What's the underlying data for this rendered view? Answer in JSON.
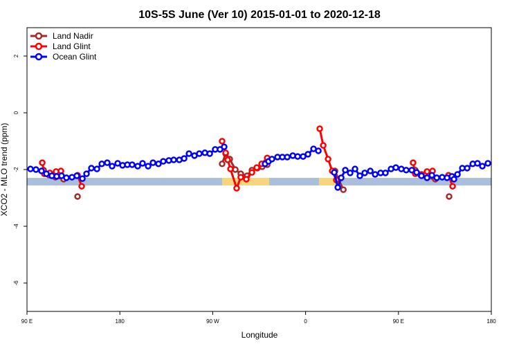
{
  "chart_data": {
    "type": "line",
    "title": "10S-5S June (Ver 10)   2015-01-01 to 2020-12-18",
    "x_label": "Longitude",
    "y_label": "XCO2 - MLO trend (ppm)",
    "xlim": [
      90,
      540
    ],
    "xticks": [
      {
        "value": 90,
        "label": "90 E"
      },
      180,
      {
        "value": 270,
        "label": "90 W"
      },
      {
        "value": 360,
        "label": "0"
      },
      {
        "value": 450,
        "label": "90 E"
      },
      {
        "value": 540,
        "label": "180"
      }
    ],
    "ylim": [
      -7,
      3
    ],
    "yticks": [
      -6,
      -4,
      -2,
      0,
      2
    ],
    "legend": "top-left",
    "series": [
      {
        "name": "Land Nadir",
        "color": "#a52a2a",
        "x": [
          106.1,
          111.5,
          117.5,
          125.5,
          132,
          139,
          200,
          279.1,
          282.5,
          286.5,
          291.9,
          297.2,
          303.3,
          308,
          313.3,
          318,
          322.8,
          350,
          388.5,
          391.9,
          396.6,
          430,
          466.3,
          471.7,
          477.7,
          485.7,
          492,
          499.1
        ],
        "values": [
          -2.02,
          -2.2,
          -2.27,
          -2.34,
          null,
          -2.95,
          null,
          -1.8,
          -1.44,
          -1.63,
          -2.0,
          -2.15,
          -2.22,
          -2.02,
          -1.95,
          -1.9,
          -1.83,
          null,
          -2.05,
          -2.34,
          -2.71,
          null,
          -2.02,
          -2.2,
          -2.29,
          -2.34,
          null,
          -2.95
        ]
      },
      {
        "name": "Land Glint",
        "color": "#ff0000",
        "x": [
          104.8,
          106.8,
          112.1,
          118.2,
          122.9,
          131,
          139,
          143,
          200,
          279.1,
          282.5,
          284.5,
          287.2,
          293.2,
          297.2,
          302.6,
          308,
          312.7,
          317.4,
          322.8,
          350,
          373.7,
          377.1,
          381.8,
          385.8,
          389.8,
          430,
          464.2,
          466.3,
          472.3,
          477.7,
          483,
          490,
          498.5,
          502.5
        ],
        "values": [
          -1.76,
          -2.15,
          -2.12,
          -2.07,
          -2.05,
          null,
          -2.2,
          -2.59,
          null,
          -1.0,
          -1.41,
          -1.66,
          -1.98,
          -2.66,
          -2.27,
          -2.34,
          -2.1,
          -1.93,
          -1.8,
          -1.59,
          null,
          -0.56,
          -1.15,
          -1.63,
          -2.05,
          -2.37,
          null,
          -1.76,
          -2.15,
          -2.17,
          -2.07,
          -2.05,
          null,
          -2.2,
          -2.59
        ]
      },
      {
        "name": "Ocean Glint",
        "color": "#0000ff",
        "x": [
          93.4,
          98.7,
          104.1,
          108.8,
          114.1,
          118.8,
          123.5,
          128.2,
          133.6,
          138.3,
          143.7,
          147.7,
          152.4,
          157.8,
          162.5,
          167.8,
          172.5,
          177.9,
          182.6,
          187.3,
          191.9,
          197.3,
          202,
          207.4,
          212.1,
          217.4,
          222.1,
          227.5,
          232.2,
          237.6,
          242.3,
          247,
          252.3,
          257,
          262.4,
          267.1,
          272.4,
          277.1,
          281.1,
          300,
          320.7,
          324.1,
          327.4,
          332.8,
          337.5,
          342.2,
          347.6,
          352.3,
          357.6,
          362.3,
          367.7,
          372.4,
          380,
          387.8,
          391.2,
          394.5,
          398.5,
          403.2,
          407.9,
          412.6,
          417.3,
          422.7,
          427.4,
          432.7,
          437.4,
          442.8,
          447.5,
          452.8,
          457.5,
          462.9,
          467.6,
          472.3,
          477.7,
          482.4,
          487.1,
          492.4,
          497.1,
          501.8,
          503.8,
          507.2,
          511.9,
          516.6,
          522,
          526.6,
          531.3,
          536.7
        ],
        "values": [
          -1.98,
          -2.0,
          -2.05,
          -2.15,
          -2.22,
          -2.24,
          -2.22,
          -2.29,
          -2.27,
          -2.22,
          -2.32,
          -2.15,
          -1.95,
          -1.98,
          -1.8,
          -1.76,
          -1.88,
          -1.78,
          -1.85,
          -1.83,
          -1.83,
          -1.88,
          -1.78,
          -1.88,
          -1.76,
          -1.8,
          -1.71,
          -1.68,
          -1.66,
          -1.66,
          -1.61,
          -1.44,
          -1.51,
          -1.44,
          -1.41,
          -1.44,
          -1.29,
          -1.29,
          -1.2,
          null,
          -1.8,
          -1.71,
          -1.63,
          -1.56,
          -1.56,
          -1.56,
          -1.51,
          -1.54,
          -1.54,
          -1.46,
          -1.27,
          -1.34,
          null,
          -2.1,
          -2.63,
          -2.29,
          -2.02,
          -2.12,
          -1.98,
          -2.22,
          -2.12,
          -2.05,
          -2.17,
          -2.12,
          -2.12,
          -1.98,
          -1.93,
          -1.98,
          -2.02,
          -2.02,
          -2.1,
          -2.22,
          -2.29,
          -2.2,
          -2.29,
          -2.27,
          -2.29,
          -2.24,
          -2.34,
          -2.17,
          -1.95,
          -1.95,
          -1.8,
          -1.78,
          -1.88,
          -1.78
        ]
      }
    ]
  }
}
